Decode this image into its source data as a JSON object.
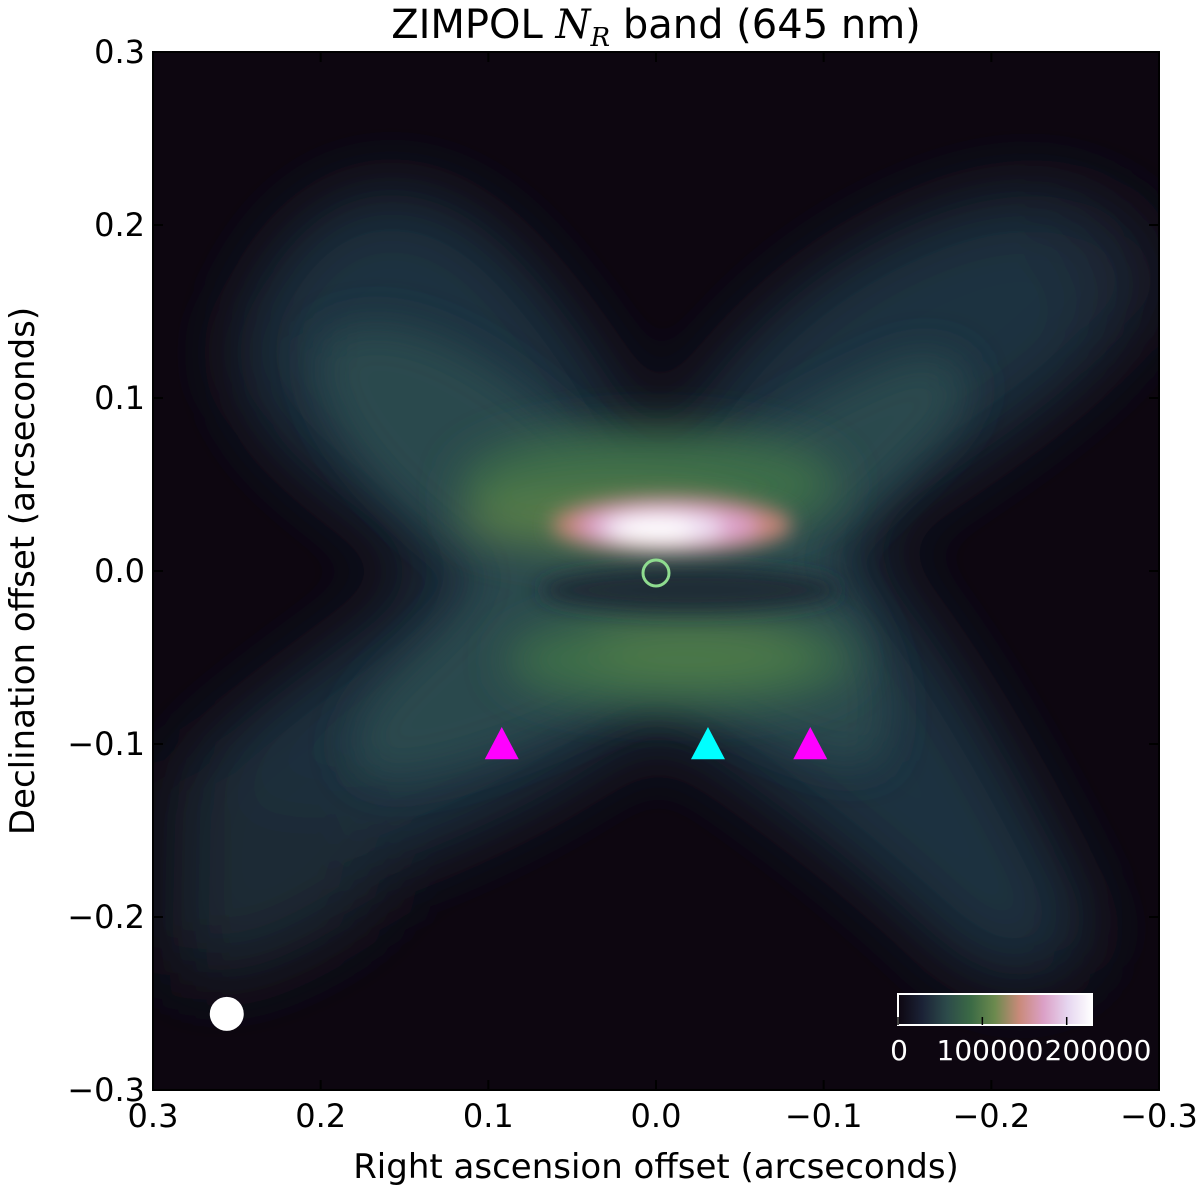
{
  "chart_data": {
    "type": "heatmap",
    "title": {
      "prefix": "ZIMPOL ",
      "symbol": "N",
      "symbol_subscript": "R",
      "suffix": " band (645 nm)"
    },
    "xlabel": "Right ascension offset (arcseconds)",
    "ylabel": "Declination offset (arcseconds)",
    "xlim": [
      0.3,
      -0.3
    ],
    "ylim": [
      -0.3,
      0.3
    ],
    "x_ticks": [
      {
        "value": 0.3,
        "label": "0.3"
      },
      {
        "value": 0.2,
        "label": "0.2"
      },
      {
        "value": 0.1,
        "label": "0.1"
      },
      {
        "value": 0.0,
        "label": "0.0"
      },
      {
        "value": -0.1,
        "label": "−0.1"
      },
      {
        "value": -0.2,
        "label": "−0.2"
      },
      {
        "value": -0.3,
        "label": "−0.3"
      }
    ],
    "y_ticks": [
      {
        "value": 0.3,
        "label": "0.3"
      },
      {
        "value": 0.2,
        "label": "0.2"
      },
      {
        "value": 0.1,
        "label": "0.1"
      },
      {
        "value": 0.0,
        "label": "0.0"
      },
      {
        "value": -0.1,
        "label": "−0.1"
      },
      {
        "value": -0.2,
        "label": "−0.2"
      },
      {
        "value": -0.3,
        "label": "−0.3"
      }
    ],
    "grid": false,
    "colormap": {
      "stops": [
        "#0d0610",
        "#1b2236",
        "#2c4a4a",
        "#3b6a45",
        "#6c8a4e",
        "#c98a7a",
        "#dba0c6",
        "#e6d6f0",
        "#ffffff"
      ],
      "tick_labels": [
        "0",
        "100000",
        "200000"
      ],
      "tick_values": [
        0,
        100000,
        200000
      ],
      "placement": "bottom-right"
    },
    "markers": [
      {
        "shape": "triangle",
        "x": 0.092,
        "y": -0.1,
        "color": "#ff00ff"
      },
      {
        "shape": "triangle",
        "x": -0.031,
        "y": -0.1,
        "color": "#00ffff"
      },
      {
        "shape": "triangle",
        "x": -0.092,
        "y": -0.1,
        "color": "#ff00ff"
      },
      {
        "shape": "open-circle",
        "x": 0.0,
        "y": 0.0,
        "color": "#8fdc8f"
      },
      {
        "shape": "filled-circle",
        "x": 0.256,
        "y": -0.256,
        "color": "#ffffff"
      }
    ],
    "background_color": "#0d0610"
  }
}
